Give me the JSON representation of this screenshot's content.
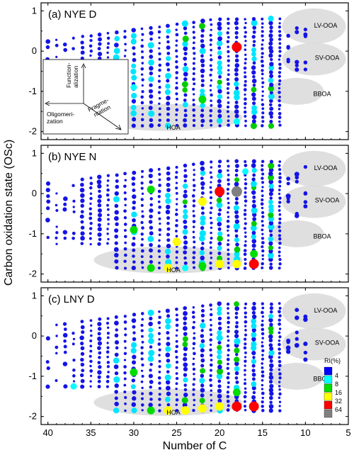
{
  "figure": {
    "ylabel": "Carbon oxidation state (OSc)",
    "xlabel": "Number of C"
  },
  "chart_data": [
    {
      "type": "scatter",
      "panel_label": "(a) NYE D",
      "xlim": [
        40.8,
        5
      ],
      "ylim": [
        -2.2,
        1.2
      ],
      "x_ticks": [
        40,
        35,
        30,
        25,
        20,
        15,
        10,
        5
      ],
      "y_ticks": [
        -2,
        -1,
        0,
        1
      ],
      "regions": [
        "LV-OOA",
        "SV-OOA",
        "BBOA",
        "HOA"
      ],
      "scheme": {
        "functionalization": "Function-alization",
        "fragmentation": "Fragme-ntation",
        "oligomerization": "Oligomeri-zation"
      },
      "highlights": [
        {
          "x": 30,
          "y": -0.9,
          "ri": 8
        },
        {
          "x": 22,
          "y": -1.2,
          "ri": 16
        },
        {
          "x": 18,
          "y": 0.1,
          "ri": 64
        },
        {
          "x": 18,
          "y": -1.75,
          "ri": 8
        }
      ]
    },
    {
      "type": "scatter",
      "panel_label": "(b) NYE N",
      "xlim": [
        40.8,
        5
      ],
      "ylim": [
        -2.2,
        1.2
      ],
      "x_ticks": [
        40,
        35,
        30,
        25,
        20,
        15,
        10,
        5
      ],
      "y_ticks": [
        -2,
        -1,
        0,
        1
      ],
      "regions": [
        "LV-OOA",
        "SV-OOA",
        "BBOA",
        "HOA"
      ],
      "highlights": [
        {
          "x": 28,
          "y": 0.1,
          "ri": 16
        },
        {
          "x": 30,
          "y": -0.9,
          "ri": 16
        },
        {
          "x": 20,
          "y": 0.05,
          "ri": 64
        },
        {
          "x": 18,
          "y": 0.05,
          "ri": 128
        },
        {
          "x": 22,
          "y": -0.2,
          "ri": 32
        },
        {
          "x": 16,
          "y": -1.5,
          "ri": 16
        },
        {
          "x": 16,
          "y": -1.75,
          "ri": 64
        },
        {
          "x": 28,
          "y": -1.85,
          "ri": 16
        },
        {
          "x": 26,
          "y": -1.85,
          "ri": 32
        },
        {
          "x": 24,
          "y": -1.85,
          "ri": 8
        },
        {
          "x": 22,
          "y": -1.8,
          "ri": 16
        },
        {
          "x": 20,
          "y": -1.75,
          "ri": 32
        },
        {
          "x": 18,
          "y": -1.75,
          "ri": 32
        },
        {
          "x": 25,
          "y": -1.2,
          "ri": 32
        },
        {
          "x": 17,
          "y": 0.55,
          "ri": 8
        }
      ]
    },
    {
      "type": "scatter",
      "panel_label": "(c) LNY D",
      "xlim": [
        40.8,
        5
      ],
      "ylim": [
        -2.2,
        1.2
      ],
      "x_ticks": [
        40,
        35,
        30,
        25,
        20,
        15,
        10,
        5
      ],
      "y_ticks": [
        -2,
        -1,
        0,
        1
      ],
      "regions": [
        "LV-OOA",
        "SV-OOA",
        "BBOA",
        "HOA"
      ],
      "legend": {
        "title": "RI(%)",
        "items": [
          {
            "label": "4",
            "color": "#0000ff"
          },
          {
            "label": "8",
            "color": "#00ffff"
          },
          {
            "label": "16",
            "color": "#00dd00"
          },
          {
            "label": "32",
            "color": "#ffff00"
          },
          {
            "label": "64",
            "color": "#ff0000"
          },
          {
            "label": "",
            "color": "#808080"
          }
        ]
      },
      "highlights": [
        {
          "x": 30,
          "y": -0.9,
          "ri": 16
        },
        {
          "x": 37,
          "y": -1.25,
          "ri": 8
        },
        {
          "x": 16,
          "y": -1.75,
          "ri": 64
        },
        {
          "x": 18,
          "y": -1.75,
          "ri": 64
        },
        {
          "x": 28,
          "y": -1.85,
          "ri": 16
        },
        {
          "x": 26,
          "y": -1.85,
          "ri": 32
        },
        {
          "x": 24,
          "y": -1.85,
          "ri": 32
        },
        {
          "x": 22,
          "y": -1.8,
          "ri": 32
        },
        {
          "x": 20,
          "y": -1.75,
          "ri": 32
        },
        {
          "x": 18,
          "y": -1.4,
          "ri": 16
        }
      ]
    }
  ]
}
